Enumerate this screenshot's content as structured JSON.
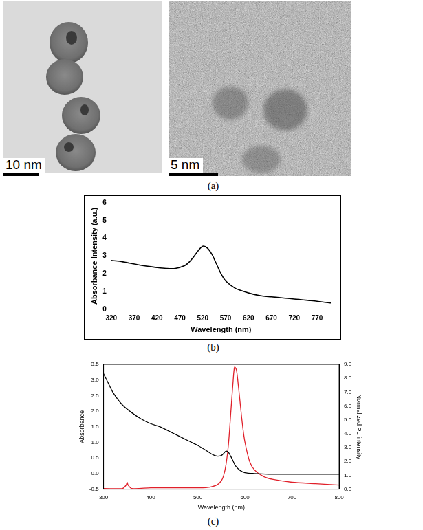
{
  "panel_labels": [
    "(a)",
    "(b)",
    "(c)"
  ],
  "images": [
    {
      "scale_bar": "10 nm"
    },
    {
      "scale_bar": "5 nm"
    }
  ],
  "chart_data": [
    {
      "type": "line",
      "x_label": "Wavelength (nm)",
      "y_label": "Absorbance Intensity (a.u.)",
      "xlim": [
        320,
        800
      ],
      "xticks": [
        320,
        370,
        420,
        470,
        520,
        570,
        620,
        670,
        720,
        770
      ],
      "ylim": [
        0,
        6
      ],
      "yticks": [
        0,
        1,
        2,
        3,
        4,
        5,
        6
      ],
      "grid": false,
      "series": [
        {
          "color": "#000000",
          "x": [
            320,
            340,
            360,
            380,
            400,
            420,
            440,
            460,
            480,
            490,
            500,
            510,
            520,
            530,
            540,
            550,
            560,
            570,
            590,
            610,
            630,
            650,
            670,
            690,
            710,
            730,
            750,
            770,
            790,
            800
          ],
          "values": [
            2.75,
            2.7,
            2.6,
            2.5,
            2.42,
            2.35,
            2.3,
            2.3,
            2.45,
            2.65,
            2.95,
            3.3,
            3.55,
            3.45,
            3.1,
            2.55,
            2.0,
            1.6,
            1.2,
            1.0,
            0.85,
            0.75,
            0.7,
            0.65,
            0.6,
            0.55,
            0.5,
            0.45,
            0.38,
            0.35
          ]
        }
      ]
    },
    {
      "type": "line",
      "x_label": "Wavelength (nm)",
      "y_label": "Absorbance",
      "y2_label": "Normalized PL intensity",
      "xlim": [
        300,
        800
      ],
      "xticks": [
        300,
        400,
        500,
        600,
        700,
        800
      ],
      "ylim": [
        -0.5,
        3.5
      ],
      "yticks": [
        -0.5,
        {
          "value": 0,
          "label": "0.0"
        },
        0.5,
        {
          "value": 1,
          "label": "1.0"
        },
        1.5,
        {
          "value": 2,
          "label": "2.0"
        },
        2.5,
        {
          "value": 3,
          "label": "3.0"
        },
        3.5
      ],
      "y2lim": [
        0,
        9
      ],
      "y2ticks": [
        {
          "value": 0,
          "label": "0.0"
        },
        {
          "value": 1,
          "label": "1.0"
        },
        {
          "value": 2,
          "label": "2.0"
        },
        {
          "value": 3,
          "label": "3.0"
        },
        {
          "value": 4,
          "label": "4.0"
        },
        {
          "value": 5,
          "label": "5.0"
        },
        {
          "value": 6,
          "label": "6.0"
        },
        {
          "value": 7,
          "label": "7.0"
        },
        {
          "value": 8,
          "label": "8.0"
        },
        {
          "value": 9,
          "label": "9.0"
        }
      ],
      "grid": false,
      "series": [
        {
          "color": "#000000",
          "x": [
            300,
            310,
            320,
            340,
            360,
            380,
            400,
            420,
            440,
            460,
            480,
            500,
            520,
            530,
            540,
            550,
            555,
            560,
            565,
            570,
            575,
            580,
            590,
            600,
            620,
            650,
            700,
            750,
            800
          ],
          "values": [
            3.2,
            2.9,
            2.6,
            2.2,
            1.95,
            1.75,
            1.6,
            1.5,
            1.35,
            1.2,
            1.05,
            0.9,
            0.72,
            0.62,
            0.56,
            0.58,
            0.65,
            0.72,
            0.68,
            0.55,
            0.4,
            0.25,
            0.1,
            0.03,
            0.0,
            -0.02,
            -0.02,
            -0.02,
            -0.02
          ]
        },
        {
          "color": "#e0202a",
          "axis": "y2",
          "x": [
            300,
            340,
            348,
            350,
            352,
            360,
            400,
            450,
            500,
            520,
            540,
            550,
            555,
            560,
            565,
            570,
            575,
            578,
            582,
            586,
            590,
            595,
            600,
            610,
            620,
            640,
            660,
            700,
            750,
            800
          ],
          "values": [
            0.05,
            0.05,
            0.3,
            0.5,
            0.3,
            0.05,
            0.1,
            0.1,
            0.1,
            0.12,
            0.3,
            0.6,
            1.0,
            1.8,
            3.2,
            5.5,
            7.8,
            8.8,
            8.6,
            7.5,
            6.2,
            4.6,
            3.4,
            2.0,
            1.4,
            0.9,
            0.7,
            0.5,
            0.4,
            0.3
          ]
        }
      ]
    }
  ]
}
